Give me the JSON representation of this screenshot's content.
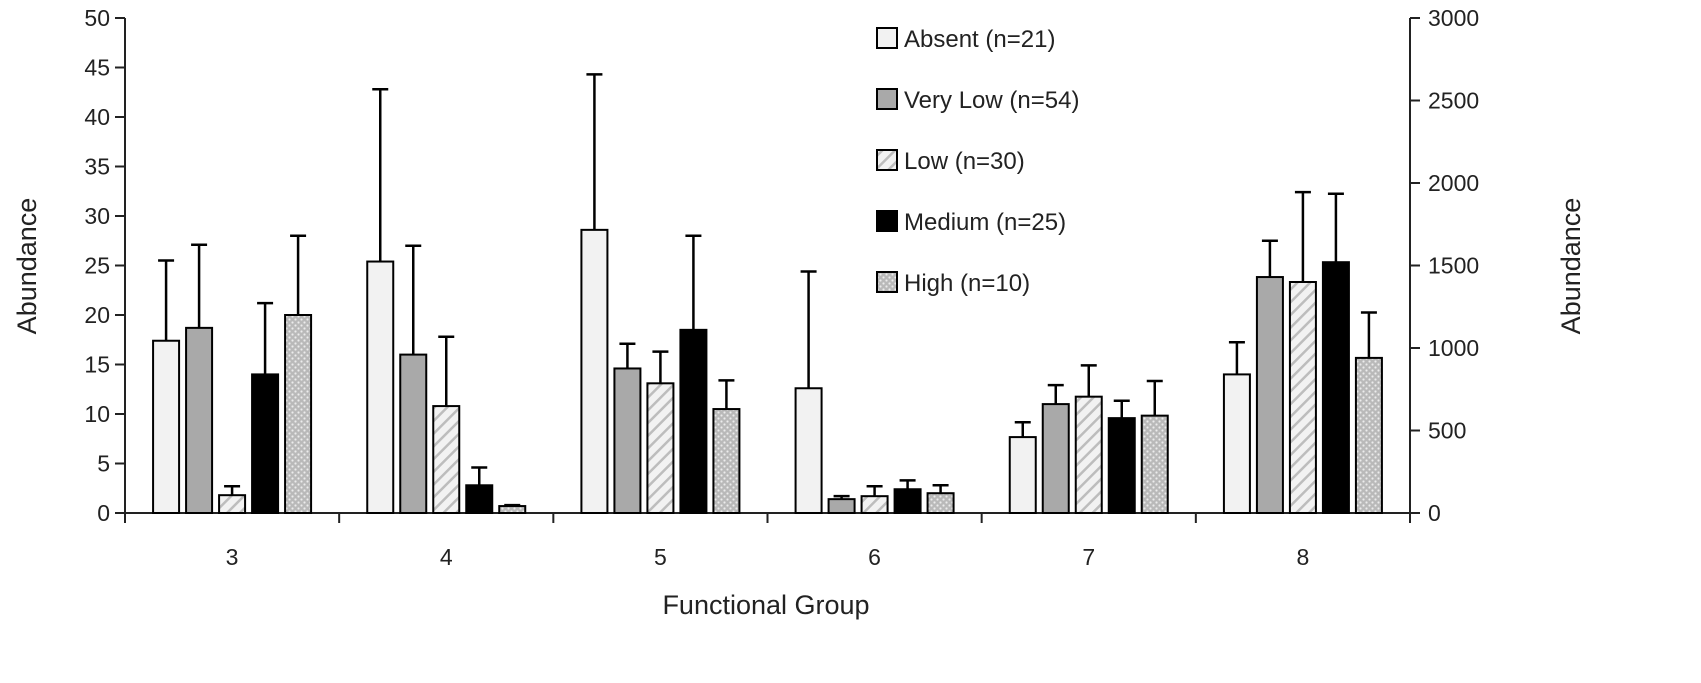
{
  "chart_data": {
    "type": "bar",
    "xlabel": "Functional Group",
    "ylabel_left": "Abundance",
    "ylabel_right": "Abundance",
    "categories": [
      "3",
      "4",
      "5",
      "6",
      "7",
      "8"
    ],
    "left_axis": {
      "ylim": [
        0,
        50
      ],
      "ticks": [
        "0",
        "5",
        "10",
        "15",
        "20",
        "25",
        "30",
        "35",
        "40",
        "45",
        "50"
      ],
      "applies_to_categories": [
        "3",
        "4",
        "5",
        "6"
      ]
    },
    "right_axis": {
      "ylim": [
        0,
        3000
      ],
      "ticks": [
        "0",
        "500",
        "1000",
        "1500",
        "2000",
        "2500",
        "3000"
      ],
      "applies_to_categories": [
        "7",
        "8"
      ]
    },
    "grid": false,
    "legend_position": "top-center",
    "series": [
      {
        "name": "Absent (n=21)",
        "pattern": "light",
        "values": [
          17.4,
          25.4,
          28.6,
          12.6,
          460,
          840
        ],
        "error": [
          8.1,
          17.4,
          15.7,
          11.8,
          90,
          195
        ]
      },
      {
        "name": "Very Low (n=54)",
        "pattern": "gray",
        "values": [
          18.7,
          16.0,
          14.6,
          1.4,
          660,
          1430
        ],
        "error": [
          8.4,
          11.0,
          2.5,
          0.3,
          115,
          220
        ]
      },
      {
        "name": "Low (n=30)",
        "pattern": "hatch",
        "values": [
          1.8,
          10.8,
          13.1,
          1.7,
          705,
          1400
        ],
        "error": [
          0.9,
          7.0,
          3.2,
          1.0,
          190,
          545
        ]
      },
      {
        "name": "Medium (n=25)",
        "pattern": "black",
        "values": [
          14.0,
          2.8,
          18.5,
          2.4,
          575,
          1520
        ],
        "error": [
          7.2,
          1.8,
          9.5,
          0.9,
          105,
          415
        ]
      },
      {
        "name": "High (n=10)",
        "pattern": "dots",
        "values": [
          20.0,
          0.7,
          10.5,
          2.0,
          590,
          940
        ],
        "error": [
          8.0,
          0.1,
          2.9,
          0.8,
          210,
          275
        ]
      }
    ]
  }
}
